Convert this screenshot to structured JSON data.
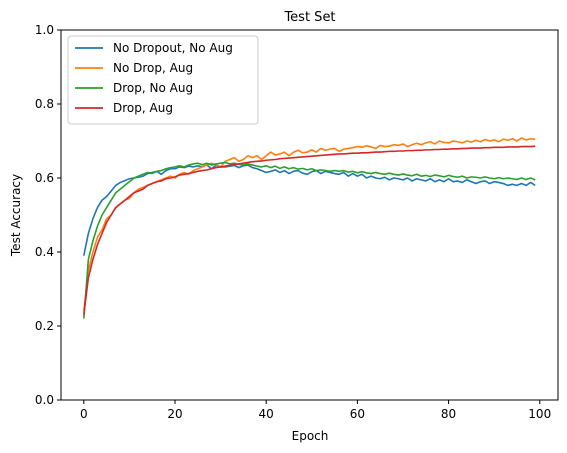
{
  "chart_data": {
    "type": "line",
    "title": "Test Set",
    "xlabel": "Epoch",
    "ylabel": "Test Accuracy",
    "xlim": [
      -5,
      104
    ],
    "ylim": [
      0.0,
      1.0
    ],
    "xticks": [
      "0",
      "20",
      "40",
      "60",
      "80",
      "100"
    ],
    "yticks": [
      "0.0",
      "0.2",
      "0.4",
      "0.6",
      "0.8",
      "1.0"
    ],
    "grid": false,
    "legend": "upper-left",
    "series": [
      {
        "name": "No Dropout, No Aug",
        "color": "#1f77b4",
        "values": [
          0.39,
          0.45,
          0.49,
          0.52,
          0.54,
          0.55,
          0.565,
          0.58,
          0.588,
          0.593,
          0.598,
          0.6,
          0.602,
          0.605,
          0.612,
          0.615,
          0.618,
          0.61,
          0.62,
          0.625,
          0.625,
          0.63,
          0.628,
          0.632,
          0.63,
          0.633,
          0.63,
          0.635,
          0.625,
          0.634,
          0.63,
          0.63,
          0.632,
          0.634,
          0.628,
          0.633,
          0.635,
          0.628,
          0.625,
          0.62,
          0.615,
          0.618,
          0.622,
          0.615,
          0.62,
          0.612,
          0.618,
          0.62,
          0.613,
          0.61,
          0.617,
          0.62,
          0.612,
          0.618,
          0.615,
          0.612,
          0.61,
          0.615,
          0.605,
          0.612,
          0.605,
          0.61,
          0.6,
          0.605,
          0.6,
          0.598,
          0.602,
          0.595,
          0.6,
          0.598,
          0.595,
          0.6,
          0.592,
          0.598,
          0.595,
          0.592,
          0.598,
          0.59,
          0.595,
          0.59,
          0.598,
          0.59,
          0.592,
          0.588,
          0.595,
          0.59,
          0.585,
          0.59,
          0.592,
          0.585,
          0.59,
          0.588,
          0.585,
          0.58,
          0.583,
          0.58,
          0.585,
          0.58,
          0.588,
          0.58
        ]
      },
      {
        "name": "No Drop, Aug",
        "color": "#ff7f0e",
        "values": [
          0.24,
          0.35,
          0.4,
          0.44,
          0.46,
          0.49,
          0.5,
          0.52,
          0.53,
          0.54,
          0.545,
          0.56,
          0.57,
          0.575,
          0.58,
          0.585,
          0.59,
          0.595,
          0.6,
          0.605,
          0.6,
          0.61,
          0.615,
          0.61,
          0.62,
          0.625,
          0.63,
          0.635,
          0.64,
          0.636,
          0.63,
          0.645,
          0.65,
          0.655,
          0.645,
          0.65,
          0.66,
          0.655,
          0.66,
          0.65,
          0.66,
          0.67,
          0.662,
          0.665,
          0.67,
          0.66,
          0.67,
          0.675,
          0.668,
          0.67,
          0.676,
          0.67,
          0.68,
          0.675,
          0.678,
          0.68,
          0.672,
          0.678,
          0.68,
          0.682,
          0.685,
          0.683,
          0.687,
          0.684,
          0.68,
          0.688,
          0.685,
          0.686,
          0.69,
          0.688,
          0.692,
          0.685,
          0.69,
          0.694,
          0.69,
          0.695,
          0.698,
          0.692,
          0.7,
          0.696,
          0.695,
          0.7,
          0.698,
          0.695,
          0.7,
          0.697,
          0.702,
          0.698,
          0.704,
          0.7,
          0.703,
          0.698,
          0.705,
          0.702,
          0.706,
          0.7,
          0.708,
          0.703,
          0.706,
          0.705
        ]
      },
      {
        "name": "Drop, No Aug",
        "color": "#2ca02c",
        "values": [
          0.22,
          0.38,
          0.43,
          0.47,
          0.5,
          0.52,
          0.54,
          0.56,
          0.57,
          0.58,
          0.59,
          0.6,
          0.605,
          0.61,
          0.615,
          0.612,
          0.618,
          0.62,
          0.625,
          0.628,
          0.63,
          0.633,
          0.63,
          0.635,
          0.638,
          0.64,
          0.636,
          0.64,
          0.635,
          0.638,
          0.64,
          0.642,
          0.638,
          0.64,
          0.637,
          0.635,
          0.638,
          0.635,
          0.632,
          0.63,
          0.633,
          0.628,
          0.632,
          0.626,
          0.63,
          0.625,
          0.628,
          0.624,
          0.626,
          0.622,
          0.625,
          0.62,
          0.622,
          0.62,
          0.618,
          0.62,
          0.618,
          0.62,
          0.616,
          0.618,
          0.614,
          0.617,
          0.614,
          0.612,
          0.615,
          0.612,
          0.61,
          0.613,
          0.61,
          0.608,
          0.611,
          0.608,
          0.606,
          0.61,
          0.605,
          0.607,
          0.604,
          0.608,
          0.606,
          0.603,
          0.607,
          0.604,
          0.602,
          0.605,
          0.6,
          0.603,
          0.602,
          0.6,
          0.603,
          0.6,
          0.598,
          0.601,
          0.598,
          0.6,
          0.598,
          0.596,
          0.6,
          0.596,
          0.6,
          0.595
        ]
      },
      {
        "name": "Drop, Aug",
        "color": "#d62728",
        "values": [
          0.23,
          0.33,
          0.38,
          0.42,
          0.45,
          0.48,
          0.5,
          0.52,
          0.53,
          0.54,
          0.55,
          0.56,
          0.565,
          0.57,
          0.58,
          0.585,
          0.59,
          0.592,
          0.598,
          0.6,
          0.603,
          0.608,
          0.61,
          0.612,
          0.615,
          0.618,
          0.62,
          0.622,
          0.625,
          0.628,
          0.63,
          0.632,
          0.634,
          0.636,
          0.638,
          0.64,
          0.642,
          0.644,
          0.645,
          0.646,
          0.648,
          0.649,
          0.65,
          0.652,
          0.653,
          0.654,
          0.655,
          0.656,
          0.657,
          0.658,
          0.659,
          0.66,
          0.661,
          0.662,
          0.663,
          0.664,
          0.665,
          0.665,
          0.666,
          0.667,
          0.667,
          0.668,
          0.668,
          0.669,
          0.67,
          0.67,
          0.671,
          0.672,
          0.672,
          0.673,
          0.673,
          0.674,
          0.674,
          0.675,
          0.675,
          0.676,
          0.676,
          0.677,
          0.677,
          0.678,
          0.678,
          0.679,
          0.679,
          0.68,
          0.68,
          0.681,
          0.681,
          0.681,
          0.682,
          0.682,
          0.683,
          0.683,
          0.683,
          0.684,
          0.684,
          0.684,
          0.685,
          0.685,
          0.685,
          0.686
        ]
      }
    ]
  }
}
